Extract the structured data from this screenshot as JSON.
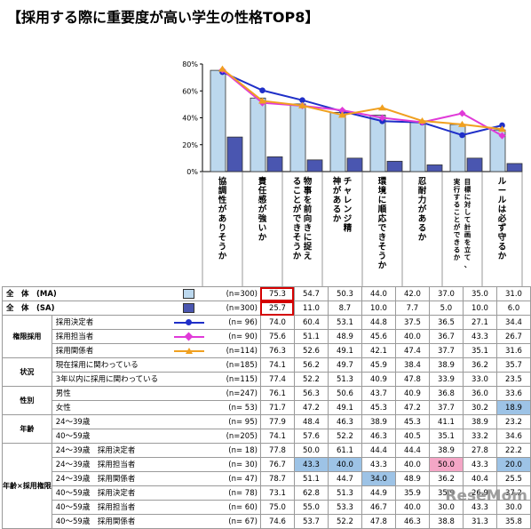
{
  "title": "【採用する際に重要度が高い学生の性格TOP8】",
  "watermark": "ReseMom",
  "chart_data": {
    "type": "bar",
    "ylim": [
      0,
      80
    ],
    "yticks": [
      "0%",
      "20%",
      "40%",
      "60%",
      "80%"
    ],
    "grid": false,
    "categories": [
      "協調性がありそうか",
      "責任感が強いか",
      "物事を前向きに捉えることができそうか",
      "チャレンジ精神があるか",
      "環境に順応できそうか",
      "忍耐力があるか",
      "目標に対して計画を立て、実行することができるか",
      "ルールは必ず守るか"
    ],
    "series": [
      {
        "name": "全　体　(MA)",
        "kind": "bar",
        "color": "#bcd8ee",
        "values": [
          75.3,
          54.7,
          50.3,
          44.0,
          42.0,
          37.0,
          35.0,
          31.0
        ]
      },
      {
        "name": "全　体　(SA)",
        "kind": "bar",
        "color": "#4a56b0",
        "values": [
          25.7,
          11.0,
          8.7,
          10.0,
          7.7,
          5.0,
          10.0,
          6.0
        ]
      },
      {
        "name": "採用決定者",
        "kind": "line",
        "color": "#1f2fc8",
        "marker": "circle",
        "values": [
          74.0,
          60.4,
          53.1,
          44.8,
          37.5,
          36.5,
          27.1,
          34.4
        ]
      },
      {
        "name": "採用担当者",
        "kind": "line",
        "color": "#e03ad8",
        "marker": "diamond",
        "values": [
          75.6,
          51.1,
          48.9,
          45.6,
          40.0,
          36.7,
          43.3,
          26.7
        ]
      },
      {
        "name": "採用関係者",
        "kind": "line",
        "color": "#f0a020",
        "marker": "triangle",
        "values": [
          76.3,
          52.6,
          49.1,
          42.1,
          47.4,
          37.7,
          35.1,
          31.6
        ]
      }
    ]
  },
  "table": {
    "groups": [
      {
        "label": "",
        "rows": [
          {
            "label": "全　体　(MA)",
            "n": "(n=300)",
            "legend": "bar-light",
            "values": [
              "75.3",
              "54.7",
              "50.3",
              "44.0",
              "42.0",
              "37.0",
              "35.0",
              "31.0"
            ],
            "all": true,
            "box": [
              0
            ]
          },
          {
            "label": "全　体　(SA)",
            "n": "(n=300)",
            "legend": "bar-dark",
            "values": [
              "25.7",
              "11.0",
              "8.7",
              "10.0",
              "7.7",
              "5.0",
              "10.0",
              "6.0"
            ],
            "all": true,
            "box": [
              0
            ]
          }
        ]
      },
      {
        "label": "権限採用",
        "rows": [
          {
            "label": "採用決定者",
            "n": "(n=  96)",
            "legend": "line-blue",
            "values": [
              "74.0",
              "60.4",
              "53.1",
              "44.8",
              "37.5",
              "36.5",
              "27.1",
              "34.4"
            ]
          },
          {
            "label": "採用担当者",
            "n": "(n=  90)",
            "legend": "line-pink",
            "values": [
              "75.6",
              "51.1",
              "48.9",
              "45.6",
              "40.0",
              "36.7",
              "43.3",
              "26.7"
            ]
          },
          {
            "label": "採用関係者",
            "n": "(n=114)",
            "legend": "line-orange",
            "values": [
              "76.3",
              "52.6",
              "49.1",
              "42.1",
              "47.4",
              "37.7",
              "35.1",
              "31.6"
            ]
          }
        ]
      },
      {
        "label": "状況",
        "rows": [
          {
            "label": "現在採用に関わっている",
            "n": "(n=185)",
            "values": [
              "74.1",
              "56.2",
              "49.7",
              "45.9",
              "38.4",
              "38.9",
              "36.2",
              "35.7"
            ]
          },
          {
            "label": "3年以内に採用に関わっている",
            "n": "(n=115)",
            "values": [
              "77.4",
              "52.2",
              "51.3",
              "40.9",
              "47.8",
              "33.9",
              "33.0",
              "23.5"
            ]
          }
        ]
      },
      {
        "label": "性別",
        "rows": [
          {
            "label": "男性",
            "n": "(n=247)",
            "values": [
              "76.1",
              "56.3",
              "50.6",
              "43.7",
              "40.9",
              "36.8",
              "36.0",
              "33.6"
            ]
          },
          {
            "label": "女性",
            "n": "(n=  53)",
            "values": [
              "71.7",
              "47.2",
              "49.1",
              "45.3",
              "47.2",
              "37.7",
              "30.2",
              "18.9"
            ],
            "hl": {
              "7": "blue"
            }
          }
        ]
      },
      {
        "label": "年齢",
        "rows": [
          {
            "label": "24～39歳",
            "n": "(n=  95)",
            "values": [
              "77.9",
              "48.4",
              "46.3",
              "38.9",
              "45.3",
              "41.1",
              "38.9",
              "23.2"
            ]
          },
          {
            "label": "40～59歳",
            "n": "(n=205)",
            "values": [
              "74.1",
              "57.6",
              "52.2",
              "46.3",
              "40.5",
              "35.1",
              "33.2",
              "34.6"
            ]
          }
        ]
      },
      {
        "label": "年齢×採用権限",
        "rows": [
          {
            "label": "24～39歳　採用決定者",
            "n": "(n=  18)",
            "values": [
              "77.8",
              "50.0",
              "61.1",
              "44.4",
              "44.4",
              "38.9",
              "27.8",
              "22.2"
            ]
          },
          {
            "label": "24～39歳　採用担当者",
            "n": "(n=  30)",
            "values": [
              "76.7",
              "43.3",
              "40.0",
              "43.3",
              "40.0",
              "50.0",
              "43.3",
              "20.0"
            ],
            "hl": {
              "1": "blue",
              "2": "blue",
              "5": "pink",
              "7": "blue"
            }
          },
          {
            "label": "24～39歳　採用関係者",
            "n": "(n=  47)",
            "values": [
              "78.7",
              "51.1",
              "44.7",
              "34.0",
              "48.9",
              "36.2",
              "40.4",
              "25.5"
            ],
            "hl": {
              "3": "blue"
            }
          },
          {
            "label": "40～59歳　採用決定者",
            "n": "(n=  78)",
            "values": [
              "73.1",
              "62.8",
              "51.3",
              "44.9",
              "35.9",
              "35.9",
              "26.9",
              "37.2"
            ]
          },
          {
            "label": "40～59歳　採用担当者",
            "n": "(n=  60)",
            "values": [
              "75.0",
              "55.0",
              "53.3",
              "46.7",
              "40.0",
              "30.0",
              "43.3",
              "30.0"
            ]
          },
          {
            "label": "40～59歳　採用関係者",
            "n": "(n=  67)",
            "values": [
              "74.6",
              "53.7",
              "52.2",
              "47.8",
              "46.3",
              "38.8",
              "31.3",
              "35.8"
            ]
          }
        ]
      }
    ]
  }
}
